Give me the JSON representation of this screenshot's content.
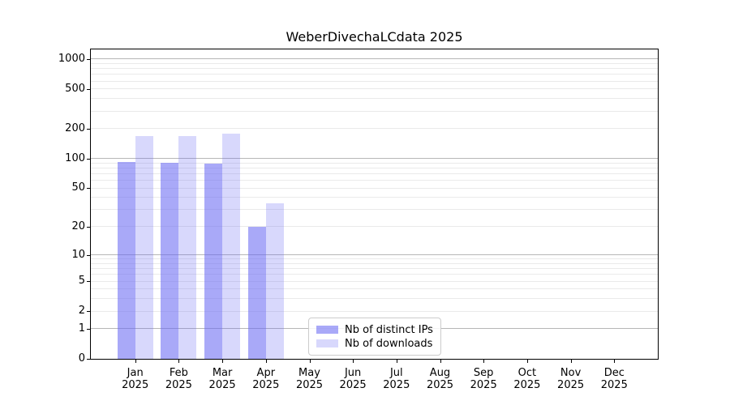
{
  "chart_data": {
    "type": "bar",
    "title": "WeberDivechaLCdata 2025",
    "year": "2025",
    "months": [
      "Jan",
      "Feb",
      "Mar",
      "Apr",
      "May",
      "Jun",
      "Jul",
      "Aug",
      "Sep",
      "Oct",
      "Nov",
      "Dec"
    ],
    "categories": [
      "Jan 2025",
      "Feb 2025",
      "Mar 2025",
      "Apr 2025",
      "May 2025",
      "Jun 2025",
      "Jul 2025",
      "Aug 2025",
      "Sep 2025",
      "Oct 2025",
      "Nov 2025",
      "Dec 2025"
    ],
    "series": [
      {
        "name": "Nb of distinct IPs",
        "color": "rgba(105,105,243,0.575)",
        "values": [
          93,
          90,
          89,
          20,
          0,
          0,
          0,
          0,
          0,
          0,
          0,
          0
        ]
      },
      {
        "name": "Nb of downloads",
        "color": "rgba(105,105,243,0.26)",
        "values": [
          168,
          167,
          179,
          35,
          0,
          0,
          0,
          0,
          0,
          0,
          0,
          0
        ]
      }
    ],
    "y_ticks": [
      0,
      1,
      2,
      5,
      10,
      20,
      50,
      100,
      200,
      500,
      1000
    ],
    "ylim": [
      0,
      1000
    ],
    "yscale": "log1p",
    "grid": true,
    "legend_position": "lower-center"
  },
  "colors": {
    "grid_major": "#b7b7b7",
    "grid_minor": "#eaeaea",
    "axis": "#000000",
    "legend_border": "#cccccc",
    "background": "#ffffff"
  }
}
